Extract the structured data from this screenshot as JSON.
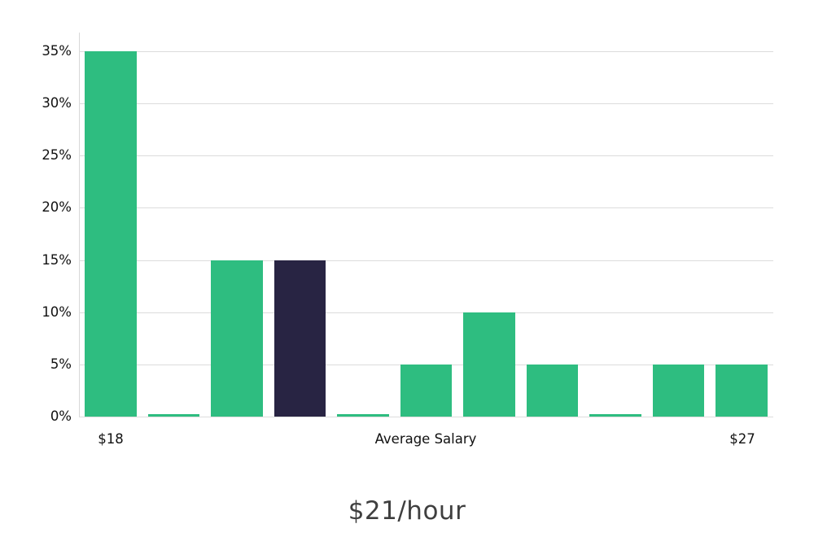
{
  "chart_data": {
    "type": "bar",
    "title": "$21/hour",
    "x_tick_labels": {
      "left": "$18",
      "center": "Average Salary",
      "right": "$27"
    },
    "ylim": [
      0,
      35
    ],
    "yticks": [
      0,
      5,
      10,
      15,
      20,
      25,
      30,
      35
    ],
    "ytick_suffix": "%",
    "grid": true,
    "legend_position": "none",
    "values": [
      35,
      0.2,
      15,
      15,
      0.2,
      5,
      10,
      5,
      0.2,
      5,
      5
    ],
    "highlight_index": 3,
    "highlight_meaning": "average salary bar",
    "bar_color": "#2ebd80",
    "highlight_color": "#282443",
    "grid_color": "#dcdcdc",
    "axis_line_color": "#d8d8d8",
    "tick_text_color": "#111111",
    "title_color": "#3f3f3f"
  }
}
